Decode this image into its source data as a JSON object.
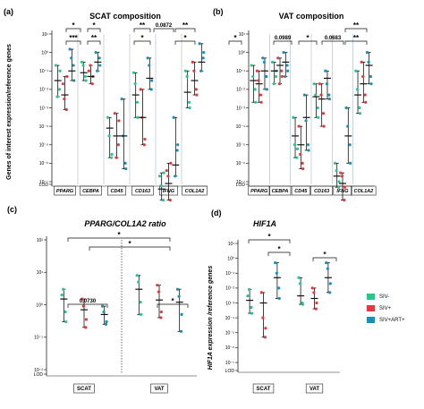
{
  "colors": {
    "siv_neg": "#2bc48a",
    "siv_pos": "#e03a3e",
    "siv_art": "#1a90b8"
  },
  "legend": [
    {
      "label": "SIV-",
      "color": "#2bc48a"
    },
    {
      "label": "SIV+",
      "color": "#e03a3e"
    },
    {
      "label": "SIV+ART+",
      "color": "#1a90b8"
    }
  ],
  "chart_data": [
    {
      "panel": "(a)",
      "type": "scatter",
      "title": "SCAT composition",
      "ylabel": "Genes of interest expression/reference genes",
      "yscale": "log",
      "ylim": [
        1e-08,
        10
      ],
      "yticks": [
        "10¹",
        "10⁰",
        "10⁻¹",
        "10⁻²",
        "10⁻³",
        "10⁻⁴",
        "10⁻⁵",
        "10⁻⁶",
        "10⁻⁷",
        "LOD"
      ],
      "categories": [
        "PPARG",
        "CEBPA",
        "CD45",
        "CD163",
        "IFNG",
        "COL1A2"
      ],
      "groups": [
        "SIV-",
        "SIV+",
        "SIV+ART+"
      ],
      "series": [
        {
          "group": "SIV-",
          "median": [
            0.03,
            0.08,
            8e-05,
            0.005,
            4e-08,
            0.007
          ],
          "points": [
            [
              0.2,
              0.01,
              0.004,
              0.1
            ],
            [
              0.3,
              0.05,
              0.2,
              0.03
            ],
            [
              0.0003,
              2e-06,
              3e-05,
              3e-06
            ],
            [
              0.08,
              0.002,
              0.02,
              0.0003
            ],
            [
              2e-07,
              1e-08,
              6e-08,
              3e-07
            ],
            [
              0.1,
              0.002,
              0.05,
              0.001
            ]
          ]
        },
        {
          "group": "SIV+",
          "median": [
            0.005,
            0.05,
            3e-05,
            0.0003,
            8e-08,
            0.03
          ],
          "points": [
            [
              0.02,
              0.0008,
              0.003,
              0.05
            ],
            [
              0.1,
              0.02,
              0.2,
              0.05
            ],
            [
              0.0005,
              1e-05,
              2e-06,
              0.0002
            ],
            [
              0.01,
              1e-05,
              0.0003,
              2e-05
            ],
            [
              4e-07,
              1e-08,
              2e-07,
              1e-06
            ],
            [
              0.3,
              0.01,
              0.1,
              0.005
            ]
          ]
        },
        {
          "group": "SIV+ART+",
          "median": [
            0.1,
            0.3,
            3e-05,
            0.04,
            8e-07,
            0.3
          ],
          "points": [
            [
              1.5,
              0.2,
              0.5,
              0.03
            ],
            [
              1,
              0.5,
              0.1,
              0.2
            ],
            [
              0.003,
              1e-06,
              3e-05,
              5e-07
            ],
            [
              0.5,
              0.01,
              0.2,
              0.03
            ],
            [
              0.0003,
              5e-06,
              2e-07,
              1e-05
            ],
            [
              3,
              0.5,
              0.1,
              1
            ]
          ]
        }
      ],
      "annotations": [
        "*",
        "***",
        "*",
        "**",
        "**",
        "*",
        "0.0872",
        "**",
        "*"
      ]
    },
    {
      "panel": "(b)",
      "type": "scatter",
      "title": "VAT composition",
      "yscale": "log",
      "ylim": [
        1e-08,
        10
      ],
      "yticks": [
        "10¹",
        "10⁰",
        "10⁻¹",
        "10⁻²",
        "10⁻³",
        "10⁻⁴",
        "10⁻⁵",
        "10⁻⁶",
        "10⁻⁷",
        "LOD"
      ],
      "categories": [
        "PPARG",
        "CEBPA",
        "CD45",
        "CD163",
        "IFNG",
        "COL1A2"
      ],
      "groups": [
        "SIV-",
        "SIV+",
        "SIV+ART+"
      ],
      "series": [
        {
          "group": "SIV-",
          "median": [
            0.03,
            0.1,
            3e-05,
            0.004,
            2e-07,
            0.005
          ],
          "points": [
            [
              0.2,
              0.01,
              0.05,
              0.002
            ],
            [
              0.3,
              0.05,
              0.02,
              0.1
            ],
            [
              0.0003,
              2e-06,
              1e-05,
              6e-06
            ],
            [
              0.02,
              0.001,
              0.005,
              0.0003
            ],
            [
              1e-06,
              5e-08,
              4e-07,
              1e-07
            ],
            [
              0.1,
              0.001,
              0.01,
              0.0005
            ]
          ]
        },
        {
          "group": "SIV+",
          "median": [
            0.02,
            0.2,
            1e-05,
            0.003,
            8e-08,
            0.02
          ],
          "points": [
            [
              0.1,
              0.005,
              0.03,
              0.002
            ],
            [
              0.5,
              0.1,
              0.02,
              0.05
            ],
            [
              0.0001,
              1e-06,
              3e-06,
              5e-07
            ],
            [
              0.02,
              0.0005,
              0.005,
              0.0001
            ],
            [
              3e-07,
              1e-08,
              2e-07,
              5e-08
            ],
            [
              0.3,
              0.005,
              0.05,
              0.002
            ]
          ]
        },
        {
          "group": "SIV+ART+",
          "median": [
            0.1,
            0.3,
            0.0003,
            0.04,
            3e-05,
            0.2
          ],
          "points": [
            [
              0.5,
              0.05,
              0.3,
              0.01
            ],
            [
              1,
              0.2,
              0.05,
              0.1
            ],
            [
              0.005,
              1e-05,
              0.0002,
              5e-06
            ],
            [
              0.1,
              0.005,
              0.02,
              0.003
            ],
            [
              0.001,
              1e-05,
              0.0001,
              1e-06
            ],
            [
              1,
              0.05,
              0.3,
              0.02
            ]
          ]
        }
      ],
      "annotations": [
        "*",
        "0.0989",
        "*",
        "0.0683",
        "**",
        "**"
      ]
    },
    {
      "panel": "(c)",
      "type": "scatter",
      "title": "PPARG/COL1A2 ratio",
      "yscale": "log",
      "ylim": [
        0.01,
        100
      ],
      "yticks": [
        "10²",
        "10¹",
        "10⁰",
        "10⁻¹",
        "10⁻²",
        "LOD"
      ],
      "categories": [
        "SCAT",
        "VAT"
      ],
      "groups": [
        "SIV-",
        "SIV+",
        "SIV+ART+"
      ],
      "series": [
        {
          "group": "SIV-",
          "median": [
            1.5,
            3
          ],
          "points": [
            [
              2,
              0.6,
              3,
              0.3
            ],
            [
              8,
              1.2,
              5,
              0.5
            ]
          ]
        },
        {
          "group": "SIV+",
          "median": [
            0.7,
            1.4
          ],
          "points": [
            [
              1.5,
              0.2,
              0.9,
              0.35
            ],
            [
              4,
              0.4,
              2.5,
              0.6
            ]
          ]
        },
        {
          "group": "SIV+ART+",
          "median": [
            0.5,
            1.2
          ],
          "points": [
            [
              0.9,
              0.25,
              0.6,
              0.3
            ],
            [
              3,
              0.15,
              1.8,
              0.5
            ]
          ]
        }
      ],
      "annotations": [
        "*",
        "*",
        "0.0730",
        "*"
      ]
    },
    {
      "panel": "(d)",
      "type": "scatter",
      "title": "HIF1A",
      "ylabel": "HIF1A expression /reference genes",
      "yscale": "log",
      "ylim": [
        1e-08,
        10
      ],
      "yticks": [
        "10¹",
        "10⁰",
        "10⁻¹",
        "10⁻²",
        "10⁻³",
        "10⁻⁴",
        "10⁻⁵",
        "10⁻⁶",
        "10⁻⁷",
        "LOD"
      ],
      "categories": [
        "SCAT",
        "VAT"
      ],
      "groups": [
        "SIV-",
        "SIV+",
        "SIV+ART+"
      ],
      "series": [
        {
          "group": "SIV-",
          "median": [
            0.0015,
            0.003
          ],
          "points": [
            [
              0.003,
              0.0005,
              0.008,
              0.0002
            ],
            [
              0.05,
              0.001,
              0.02,
              0.0008
            ]
          ]
        },
        {
          "group": "SIV+",
          "median": [
            0.001,
            0.002
          ],
          "points": [
            [
              0.005,
              5e-06,
              0.0001,
              2e-05
            ],
            [
              0.01,
              0.0004,
              0.005,
              0.001
            ]
          ]
        },
        {
          "group": "SIV+ART+",
          "median": [
            0.05,
            0.05
          ],
          "points": [
            [
              0.5,
              0.01,
              0.1,
              0.002
            ],
            [
              0.5,
              0.005,
              0.2,
              0.02
            ]
          ]
        }
      ],
      "annotations": [
        "*",
        "*",
        "*"
      ]
    }
  ]
}
